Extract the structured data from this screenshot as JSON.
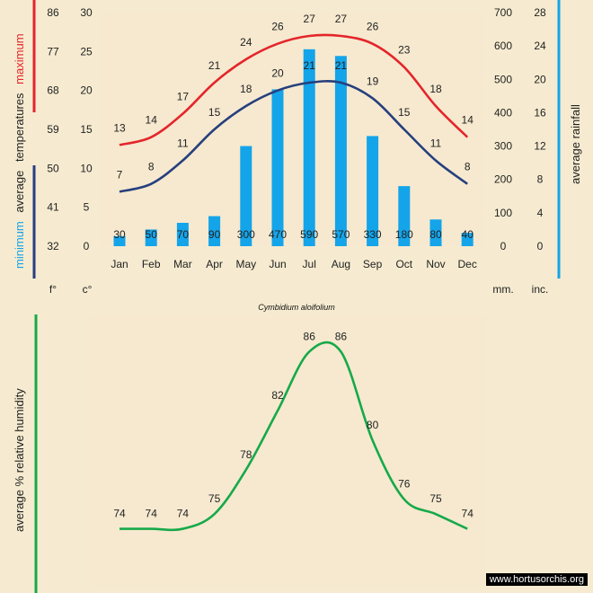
{
  "chart_data": [
    {
      "type": "bar+line",
      "categories": [
        "Jan",
        "Feb",
        "Mar",
        "Apr",
        "May",
        "Jun",
        "Jul",
        "Aug",
        "Sep",
        "Oct",
        "Nov",
        "Dec"
      ],
      "series": [
        {
          "name": "maximum",
          "kind": "line",
          "axis": "temp_c",
          "color": "#e4252b",
          "values": [
            13,
            14,
            17,
            21,
            24,
            26,
            27,
            27,
            26,
            23,
            18,
            14
          ]
        },
        {
          "name": "minimum",
          "kind": "line",
          "axis": "temp_c",
          "color": "#263f7e",
          "values": [
            7,
            8,
            11,
            15,
            18,
            20,
            21,
            21,
            19,
            15,
            11,
            8
          ]
        },
        {
          "name": "average rainfall",
          "kind": "bar",
          "axis": "rain_mm",
          "color": "#14a4ea",
          "values": [
            30,
            50,
            70,
            90,
            300,
            470,
            590,
            570,
            330,
            180,
            80,
            40
          ]
        }
      ],
      "axes": {
        "temp_f": {
          "unit": "f°",
          "ticks": [
            "32",
            "41",
            "50",
            "59",
            "68",
            "77",
            "86"
          ]
        },
        "temp_c": {
          "unit": "c°",
          "range": [
            0,
            30
          ],
          "ticks": [
            "0",
            "5",
            "10",
            "15",
            "20",
            "25",
            "30"
          ]
        },
        "rain_mm": {
          "unit": "mm.",
          "range": [
            0,
            700
          ],
          "ticks": [
            "0",
            "100",
            "200",
            "300",
            "400",
            "500",
            "600",
            "700"
          ]
        },
        "rain_in": {
          "unit": "inc.",
          "ticks": [
            "0",
            "4",
            "8",
            "12",
            "16",
            "20",
            "24",
            "28"
          ]
        }
      },
      "ylabel_left": {
        "maximum": "maximum",
        "average": "average",
        "temperatures": "temperatures",
        "minimum": "minimum"
      },
      "ylabel_right": "average rainfall",
      "caption": "Cymbidium aloifolium",
      "colors": {
        "maximum": "#e4252b",
        "minimum": "#263f7e",
        "rain": "#14a4ea"
      }
    },
    {
      "type": "line",
      "categories": [
        "Jan",
        "Feb",
        "Mar",
        "Apr",
        "May",
        "Jun",
        "Jul",
        "Aug",
        "Sep",
        "Oct",
        "Nov",
        "Dec"
      ],
      "series": [
        {
          "kind": "line",
          "color": "#17a94a",
          "values": [
            74,
            74,
            74,
            75,
            78,
            82,
            86,
            86,
            80,
            76,
            75,
            74
          ]
        }
      ],
      "ylabel": "average %  relative humidity",
      "ylim": [
        73,
        87
      ],
      "colors": {
        "humidity": "#17a94a"
      }
    }
  ],
  "watermark": "www.hortusorchis.org"
}
